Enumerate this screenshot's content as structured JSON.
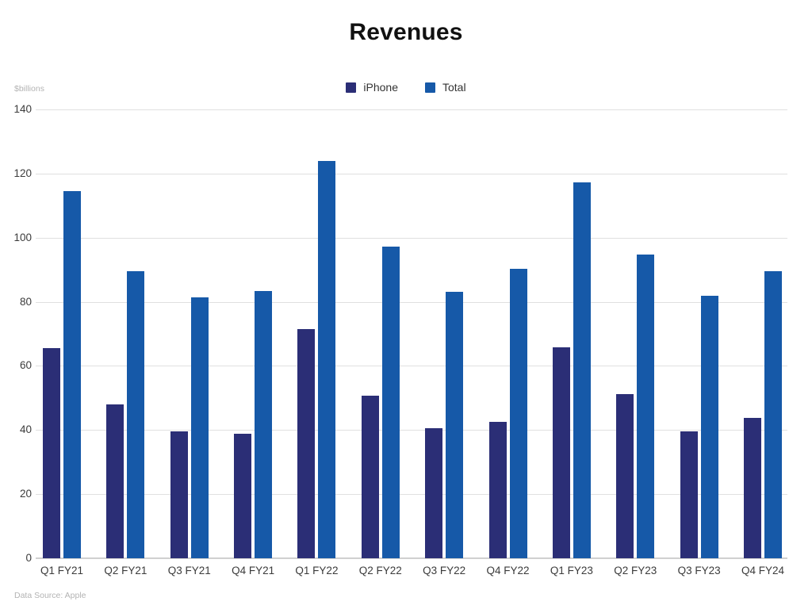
{
  "title": "Revenues",
  "source": "Data Source: Apple",
  "colors": {
    "iphone": "#2b2e76",
    "total": "#1659a8",
    "grid": "#e0e0e0",
    "axis_text": "#3b3b3b",
    "muted_text": "#b3b3b3",
    "title_text": "#111111"
  },
  "chart_data": {
    "type": "bar",
    "title": "Revenues",
    "ylabel": "$billions",
    "xlabel": "",
    "ylim": [
      0,
      140
    ],
    "yticks": [
      0,
      20,
      40,
      60,
      80,
      100,
      120,
      140
    ],
    "grid": true,
    "legend_position": "top-center",
    "categories": [
      "Q1 FY21",
      "Q2 FY21",
      "Q3 FY21",
      "Q4 FY21",
      "Q1 FY22",
      "Q2 FY22",
      "Q3 FY22",
      "Q4 FY22",
      "Q1 FY23",
      "Q2 FY23",
      "Q3 FY23",
      "Q4 FY24"
    ],
    "series": [
      {
        "name": "iPhone",
        "color": "#2b2e76",
        "values": [
          65.6,
          47.9,
          39.5,
          38.9,
          71.6,
          50.6,
          40.6,
          42.6,
          65.8,
          51.3,
          39.6,
          43.8
        ]
      },
      {
        "name": "Total",
        "color": "#1659a8",
        "values": [
          114.4,
          89.6,
          81.4,
          83.4,
          124.0,
          97.3,
          83.0,
          90.2,
          117.2,
          94.8,
          81.8,
          89.5
        ]
      }
    ]
  }
}
